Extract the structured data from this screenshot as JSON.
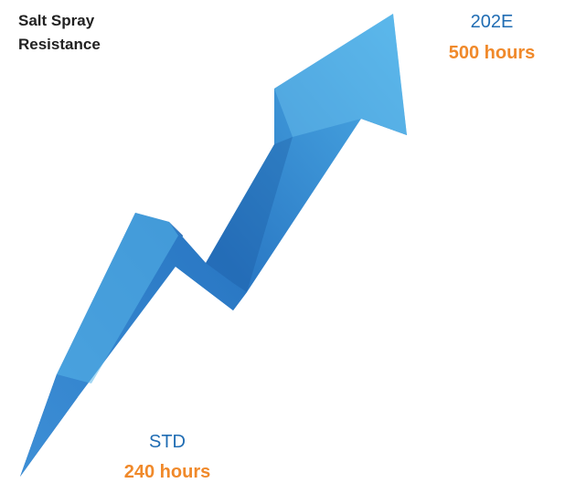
{
  "title": {
    "lines": [
      "Salt Spray",
      "Resistance"
    ]
  },
  "top_label": {
    "name": "202E",
    "value": "500 hours"
  },
  "bottom_label": {
    "name": "STD",
    "value": "240 hours"
  }
}
